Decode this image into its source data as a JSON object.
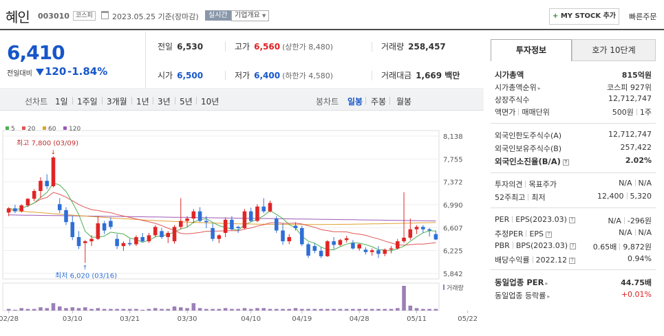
{
  "header": {
    "name": "혜인",
    "code": "003010",
    "market": "코스피",
    "date": "2023.05.25 기준(장마감)",
    "live": "실시간",
    "overview": "기업개요",
    "mystock": "MY STOCK 추가",
    "quick_order": "빠른주문"
  },
  "price": {
    "current": "6,410",
    "change_label": "전일대비",
    "change": "120",
    "change_pct": "-1.84%"
  },
  "stats": {
    "prev_label": "전일",
    "prev": "6,530",
    "high_label": "고가",
    "high": "6,560",
    "upper_limit": "(상한가 8,480)",
    "volume_label": "거래량",
    "volume": "258,457",
    "open_label": "시가",
    "open": "6,500",
    "low_label": "저가",
    "low": "6,400",
    "lower_limit": "(하한가 4,580)",
    "amount_label": "거래대금",
    "amount": "1,669 백만"
  },
  "toolbar": {
    "line_label": "선차트",
    "periods": [
      "1일",
      "1주일",
      "3개월",
      "1년",
      "3년",
      "5년",
      "10년"
    ],
    "candle_label": "봉차트",
    "candle_types": [
      "일봉",
      "주봉",
      "월봉"
    ],
    "active_candle": "일봉"
  },
  "chart_data": {
    "type": "candlestick",
    "legend": [
      {
        "name": "5",
        "color": "#4caf50"
      },
      {
        "name": "20",
        "color": "#e05555"
      },
      {
        "name": "60",
        "color": "#e0a030"
      },
      {
        "name": "120",
        "color": "#9b59b6"
      }
    ],
    "y_ticks": [
      "8,138",
      "7,755",
      "7,372",
      "6,990",
      "6,607",
      "6,225",
      "5,842"
    ],
    "ylim": [
      5842,
      8138
    ],
    "x_ticks": [
      "02/28",
      "03/10",
      "03/21",
      "03/30",
      "04/10",
      "04/19",
      "04/28",
      "05/11",
      "05/22"
    ],
    "max_label": "최고 7,800 (03/09)",
    "min_label": "최저 6,020 (03/16)",
    "volume_label": "거래량",
    "candles": [
      [
        6860,
        6950,
        6800,
        6930
      ],
      [
        6930,
        6990,
        6850,
        6880
      ],
      [
        6880,
        7000,
        6860,
        6980
      ],
      [
        6980,
        7100,
        6950,
        7090
      ],
      [
        7090,
        7250,
        7050,
        7220
      ],
      [
        7220,
        7450,
        7100,
        7390
      ],
      [
        7390,
        7500,
        7250,
        7300
      ],
      [
        7300,
        7800,
        7280,
        7780
      ],
      [
        7000,
        7100,
        6850,
        6900
      ],
      [
        6900,
        6950,
        6650,
        6700
      ],
      [
        6700,
        6800,
        6400,
        6450
      ],
      [
        6450,
        6550,
        6250,
        6300
      ],
      [
        6350,
        6400,
        6020,
        6380
      ],
      [
        6380,
        6480,
        6300,
        6420
      ],
      [
        6420,
        6800,
        6400,
        6680
      ],
      [
        6680,
        6720,
        6500,
        6560
      ],
      [
        6720,
        6780,
        6580,
        6620
      ],
      [
        6420,
        6500,
        6250,
        6300
      ],
      [
        6300,
        6380,
        6220,
        6350
      ],
      [
        6350,
        6420,
        6300,
        6330
      ],
      [
        6330,
        6480,
        6300,
        6450
      ],
      [
        6450,
        6520,
        6360,
        6380
      ],
      [
        6380,
        6520,
        6350,
        6480
      ],
      [
        6480,
        6650,
        6450,
        6620
      ],
      [
        6550,
        6600,
        6420,
        6450
      ],
      [
        6450,
        6550,
        6350,
        6520
      ],
      [
        6380,
        6650,
        6340,
        6620
      ],
      [
        6620,
        7100,
        6580,
        6720
      ],
      [
        6720,
        6800,
        6620,
        6760
      ],
      [
        6760,
        6920,
        6680,
        6880
      ],
      [
        6880,
        6950,
        6700,
        6720
      ],
      [
        6720,
        6800,
        6600,
        6700
      ],
      [
        6600,
        6680,
        6380,
        6420
      ],
      [
        6420,
        6500,
        6350,
        6480
      ],
      [
        6520,
        6780,
        6450,
        6740
      ],
      [
        6740,
        6800,
        6560,
        6580
      ],
      [
        6620,
        6640,
        6520,
        6600
      ],
      [
        6600,
        6920,
        6580,
        6880
      ],
      [
        6880,
        6940,
        6700,
        6720
      ],
      [
        6720,
        7000,
        6700,
        6960
      ],
      [
        6960,
        7100,
        6850,
        6880
      ],
      [
        6880,
        7060,
        6860,
        7020
      ],
      [
        6760,
        6800,
        6520,
        6560
      ],
      [
        6560,
        6680,
        6320,
        6380
      ],
      [
        6380,
        6500,
        6330,
        6450
      ],
      [
        6640,
        6700,
        6560,
        6600
      ],
      [
        6600,
        6640,
        6300,
        6330
      ],
      [
        6330,
        6360,
        6100,
        6140
      ],
      [
        6300,
        6350,
        6180,
        6220
      ],
      [
        6220,
        6280,
        6100,
        6130
      ],
      [
        6130,
        6400,
        6120,
        6380
      ],
      [
        6380,
        6450,
        6250,
        6320
      ],
      [
        6320,
        6420,
        6300,
        6400
      ],
      [
        6400,
        6470,
        6360,
        6430
      ],
      [
        6350,
        6400,
        6240,
        6260
      ],
      [
        6260,
        6340,
        6220,
        6330
      ],
      [
        6240,
        6280,
        6160,
        6200
      ],
      [
        6200,
        6260,
        6140,
        6230
      ],
      [
        6230,
        6300,
        6100,
        6170
      ],
      [
        6170,
        6260,
        6130,
        6240
      ],
      [
        6240,
        6300,
        6180,
        6260
      ],
      [
        6260,
        6420,
        6240,
        6380
      ],
      [
        6380,
        7200,
        6350,
        6440
      ],
      [
        6440,
        6760,
        6400,
        6580
      ],
      [
        6580,
        6650,
        6500,
        6620
      ],
      [
        6620,
        6650,
        6520,
        6580
      ],
      [
        6580,
        6600,
        6460,
        6560
      ],
      [
        6500,
        6560,
        6400,
        6410
      ]
    ],
    "volumes": [
      2,
      1,
      3,
      2,
      2,
      4,
      3,
      9,
      5,
      3,
      4,
      3,
      4,
      2,
      3,
      2,
      2,
      2,
      2,
      2,
      2,
      1,
      2,
      3,
      2,
      2,
      5,
      4,
      3,
      9,
      3,
      2,
      2,
      2,
      3,
      2,
      2,
      3,
      2,
      3,
      3,
      2,
      2,
      2,
      2,
      3,
      2,
      2,
      2,
      2,
      2,
      2,
      2,
      2,
      2,
      2,
      2,
      2,
      2,
      2,
      2,
      3,
      30,
      6,
      3,
      2,
      2,
      2
    ]
  },
  "invest_info": {
    "tab_active": "투자정보",
    "tab_other": "호가 10단계",
    "market_cap_label": "시가총액",
    "market_cap": "815억원",
    "market_cap_rank_label": "시가총액순위",
    "market_cap_rank": "코스피 927위",
    "shares_label": "상장주식수",
    "shares": "12,712,747",
    "par_label": "액면가",
    "unit_label": "매매단위",
    "par": "500원",
    "unit": "1주",
    "foreign_limit_label": "외국인한도주식수(A)",
    "foreign_limit": "12,712,747",
    "foreign_hold_label": "외국인보유주식수(B)",
    "foreign_hold": "257,422",
    "foreign_rate_label": "외국인소진율(B/A)",
    "foreign_rate": "2.02%",
    "opinion_label": "투자의견",
    "target_label": "목표주가",
    "opinion": "N/A",
    "target": "N/A",
    "w52_high_label": "52주최고",
    "w52_low_label": "최저",
    "w52_high": "12,400",
    "w52_low": "5,320",
    "per_label": "PER",
    "eps_label": "EPS(2023.03)",
    "per": "N/A",
    "eps": "-296원",
    "est_per_label": "추정PER",
    "est_eps_label": "EPS",
    "est_per": "N/A",
    "est_eps": "N/A",
    "pbr_label": "PBR",
    "bps_label": "BPS(2023.03)",
    "pbr": "0.65배",
    "bps": "9,872원",
    "dividend_label": "배당수익률",
    "dividend_date": "2022.12",
    "dividend": "0.94%",
    "sector_per_label": "동일업종 PER",
    "sector_per": "44.75배",
    "sector_rate_label": "동일업종 등락률",
    "sector_rate": "+0.01%"
  }
}
